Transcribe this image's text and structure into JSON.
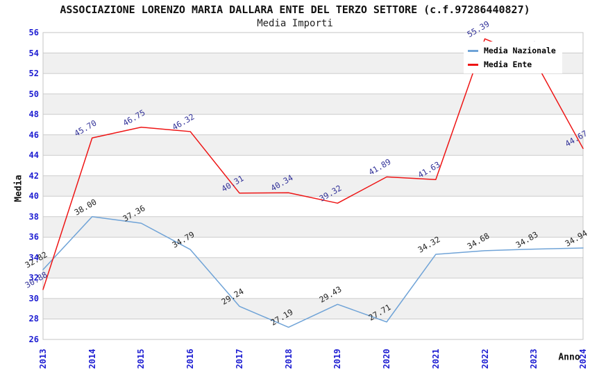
{
  "colors": {
    "national_line": "#6FA3D7",
    "ente_line": "#EE1414",
    "tick_label_blue": "#1E1ED2",
    "national_point_label": "#222222",
    "ente_point_label": "#333399",
    "grid_line": "#CCCCCC",
    "band_fill": "#F0F0F0",
    "plot_border": "#C6C6C6",
    "legend_background": "#FFFFFF"
  },
  "chart_data": {
    "type": "line",
    "title": "ASSOCIAZIONE LORENZO MARIA DALLARA ENTE DEL TERZO SETTORE (c.f.97286440827)",
    "subtitle": "Media Importi",
    "xlabel": "Anno",
    "ylabel": "Media",
    "ylim": [
      26,
      56
    ],
    "ytick_step": 2,
    "yticks": [
      26,
      28,
      30,
      32,
      34,
      36,
      38,
      40,
      42,
      44,
      46,
      48,
      50,
      52,
      54,
      56
    ],
    "grid": "horizontal lines with alternating white/gray bands",
    "legend_position": "top-right",
    "x": [
      "2013",
      "2014",
      "2015",
      "2016",
      "2017",
      "2018",
      "2019",
      "2020",
      "2021",
      "2022",
      "2023",
      "2024"
    ],
    "series": [
      {
        "name": "Media Nazionale",
        "color": "#6FA3D7",
        "label_color": "#222222",
        "values": [
          32.82,
          38.0,
          37.36,
          34.79,
          29.24,
          27.19,
          29.43,
          27.71,
          34.32,
          34.68,
          34.83,
          34.94
        ],
        "point_labels": [
          "32.82",
          "38.00",
          "37.36",
          "34.79",
          "29.24",
          "27.19",
          "29.43",
          "27.71",
          "34.32",
          "34.68",
          "34.83",
          "34.94"
        ]
      },
      {
        "name": "Media Ente",
        "color": "#EE1414",
        "label_color": "#333399",
        "values": [
          30.88,
          45.7,
          46.75,
          46.32,
          40.31,
          40.34,
          39.32,
          41.89,
          41.63,
          55.39,
          53.4,
          44.67
        ],
        "point_labels": [
          "30.88",
          "45.70",
          "46.75",
          "46.32",
          "40.31",
          "40.34",
          "39.32",
          "41.89",
          "41.63",
          "55.39",
          "53.40",
          "44.67"
        ],
        "note": "2023 point label is hidden behind the legend box; value 53.40 estimated from line slope"
      }
    ]
  }
}
